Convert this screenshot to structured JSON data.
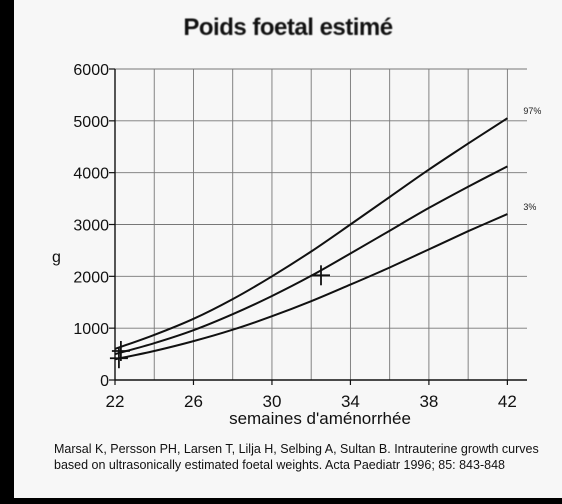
{
  "chart_data": {
    "type": "line",
    "title": "Poids foetal estimé",
    "xlabel": "semaines d'aménorrhée",
    "ylabel": "g",
    "xlim": [
      22,
      43
    ],
    "ylim": [
      0,
      6000
    ],
    "x_ticks": [
      22,
      26,
      30,
      34,
      38,
      42
    ],
    "y_ticks": [
      0,
      1000,
      2000,
      3000,
      4000,
      5000,
      6000
    ],
    "grid": true,
    "x": [
      22,
      24,
      26,
      28,
      30,
      32,
      34,
      36,
      38,
      40,
      42
    ],
    "series": [
      {
        "name": "97%",
        "values": [
          600,
          870,
          1180,
          1560,
          2000,
          2480,
          3000,
          3530,
          4060,
          4560,
          5050
        ]
      },
      {
        "values": [
          500,
          710,
          960,
          1270,
          1620,
          2010,
          2440,
          2880,
          3320,
          3730,
          4120
        ]
      },
      {
        "name": "3%",
        "values": [
          400,
          560,
          750,
          970,
          1230,
          1520,
          1840,
          2170,
          2520,
          2870,
          3200
        ]
      }
    ],
    "marked_points": [
      {
        "x": 22.3,
        "y": 560
      },
      {
        "x": 22.2,
        "y": 420
      },
      {
        "x": 32.5,
        "y": 2020
      }
    ]
  },
  "citation": "Marsal K, Persson PH, Larsen T, Lilja H, Selbing A, Sultan B. Intrauterine growth curves based on ultrasonically estimated foetal weights. Acta Paediatr 1996; 85: 843-848"
}
